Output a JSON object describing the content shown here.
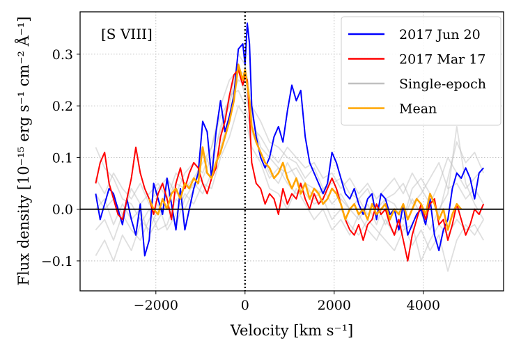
{
  "chart_data": {
    "type": "line",
    "xlabel": "Velocity [km s⁻¹]",
    "ylabel": "Flux density [10⁻¹⁵ erg s⁻¹ cm⁻² Å⁻¹]",
    "annotation": "[S VIII]",
    "xlim": [
      -3700,
      5800
    ],
    "ylim": [
      -0.158,
      0.382
    ],
    "xticks": [
      -2000,
      0,
      2000,
      4000
    ],
    "yticks": [
      -0.1,
      0.0,
      0.1,
      0.2,
      0.3
    ],
    "xtick_labels": [
      "−2000",
      "0",
      "2000",
      "4000"
    ],
    "ytick_labels": [
      "−0.1",
      "0.0",
      "0.1",
      "0.2",
      "0.3"
    ],
    "grid": true,
    "grid_style": "dotted",
    "hline": 0,
    "vline": 0,
    "legend_position": "top-right",
    "legend": [
      {
        "label": "2017 Jun 20",
        "color": "#0000ff"
      },
      {
        "label": "2017 Mar 17",
        "color": "#ff0000"
      },
      {
        "label": "Single-epoch",
        "color": "#c0c0c0"
      },
      {
        "label": "Mean",
        "color": "#ffa500"
      }
    ],
    "series": [
      {
        "key": "jun20",
        "name": "2017 Jun 20",
        "color": "#0000ff",
        "x": [
          -3350,
          -3250,
          -3150,
          -3050,
          -2950,
          -2850,
          -2750,
          -2650,
          -2550,
          -2450,
          -2350,
          -2250,
          -2150,
          -2050,
          -1950,
          -1850,
          -1750,
          -1650,
          -1550,
          -1450,
          -1350,
          -1250,
          -1150,
          -1050,
          -950,
          -850,
          -750,
          -650,
          -550,
          -450,
          -350,
          -250,
          -150,
          -50,
          0,
          50,
          100,
          150,
          250,
          350,
          450,
          550,
          650,
          750,
          850,
          950,
          1050,
          1150,
          1250,
          1350,
          1450,
          1550,
          1650,
          1750,
          1850,
          1950,
          2050,
          2150,
          2250,
          2350,
          2450,
          2550,
          2650,
          2750,
          2850,
          2950,
          3050,
          3150,
          3250,
          3350,
          3450,
          3550,
          3650,
          3750,
          3850,
          3950,
          4050,
          4150,
          4250,
          4350,
          4450,
          4550,
          4650,
          4750,
          4850,
          4950,
          5050,
          5150,
          5250,
          5350
        ],
        "y": [
          0.03,
          -0.02,
          0.01,
          0.04,
          0.03,
          0.0,
          -0.03,
          0.02,
          -0.02,
          -0.05,
          0.01,
          -0.09,
          -0.06,
          0.05,
          0.02,
          -0.01,
          0.06,
          0.01,
          -0.04,
          0.04,
          -0.04,
          0.0,
          0.04,
          0.07,
          0.17,
          0.15,
          0.06,
          0.15,
          0.21,
          0.15,
          0.18,
          0.22,
          0.31,
          0.32,
          0.28,
          0.36,
          0.32,
          0.2,
          0.14,
          0.1,
          0.08,
          0.1,
          0.14,
          0.16,
          0.13,
          0.19,
          0.24,
          0.21,
          0.23,
          0.14,
          0.09,
          0.07,
          0.05,
          0.03,
          0.05,
          0.11,
          0.09,
          0.06,
          0.03,
          0.02,
          0.04,
          0.01,
          -0.01,
          0.02,
          0.03,
          -0.02,
          0.03,
          0.02,
          -0.01,
          0.0,
          -0.04,
          0.01,
          -0.05,
          -0.03,
          -0.01,
          0.0,
          -0.03,
          0.02,
          -0.05,
          -0.08,
          -0.04,
          -0.02,
          0.04,
          0.07,
          0.06,
          0.08,
          0.06,
          0.02,
          0.07,
          0.08
        ]
      },
      {
        "key": "mar17",
        "name": "2017 Mar 17",
        "color": "#ff0000",
        "x": [
          -3350,
          -3250,
          -3150,
          -3050,
          -2950,
          -2850,
          -2750,
          -2650,
          -2550,
          -2450,
          -2350,
          -2250,
          -2150,
          -2050,
          -1950,
          -1850,
          -1750,
          -1650,
          -1550,
          -1450,
          -1350,
          -1250,
          -1150,
          -1050,
          -950,
          -850,
          -750,
          -650,
          -550,
          -450,
          -350,
          -250,
          -150,
          -50,
          0,
          50,
          100,
          150,
          250,
          350,
          450,
          550,
          650,
          750,
          850,
          950,
          1050,
          1150,
          1250,
          1350,
          1450,
          1550,
          1650,
          1750,
          1850,
          1950,
          2050,
          2150,
          2250,
          2350,
          2450,
          2550,
          2650,
          2750,
          2850,
          2950,
          3050,
          3150,
          3250,
          3350,
          3450,
          3550,
          3650,
          3750,
          3850,
          3950,
          4050,
          4150,
          4250,
          4350,
          4450,
          4550,
          4650,
          4750,
          4850,
          4950,
          5050,
          5150,
          5250,
          5350
        ],
        "y": [
          0.05,
          0.09,
          0.11,
          0.05,
          0.02,
          -0.01,
          -0.02,
          0.02,
          0.06,
          0.12,
          0.07,
          0.04,
          0.02,
          -0.01,
          0.03,
          0.05,
          0.02,
          -0.02,
          0.05,
          0.08,
          0.04,
          0.07,
          0.09,
          0.08,
          0.05,
          0.03,
          0.06,
          0.08,
          0.14,
          0.17,
          0.22,
          0.26,
          0.27,
          0.24,
          0.26,
          0.25,
          0.18,
          0.09,
          0.05,
          0.04,
          0.01,
          0.03,
          0.02,
          -0.01,
          0.04,
          0.01,
          0.03,
          0.02,
          0.05,
          0.02,
          0.0,
          0.03,
          0.01,
          0.02,
          0.04,
          0.06,
          0.04,
          0.01,
          -0.02,
          -0.04,
          -0.05,
          -0.03,
          -0.06,
          -0.03,
          -0.02,
          0.01,
          -0.01,
          0.0,
          -0.03,
          -0.05,
          -0.02,
          -0.06,
          -0.1,
          -0.05,
          -0.02,
          0.01,
          -0.02,
          0.01,
          0.02,
          -0.03,
          -0.02,
          -0.06,
          -0.03,
          0.01,
          -0.02,
          -0.05,
          -0.03,
          0.0,
          -0.01,
          0.01
        ]
      },
      {
        "key": "single1",
        "name": "Single-epoch",
        "color": "#c0c0c0",
        "x": [
          -3350,
          -3150,
          -2950,
          -2750,
          -2550,
          -2350,
          -2150,
          -1950,
          -1750,
          -1550,
          -1350,
          -1150,
          -950,
          -750,
          -550,
          -350,
          -150,
          0,
          150,
          350,
          550,
          750,
          950,
          1150,
          1350,
          1550,
          1750,
          1950,
          2150,
          2350,
          2550,
          2750,
          2950,
          3150,
          3350,
          3550,
          3750,
          3950,
          4150,
          4350,
          4550,
          4750,
          4950,
          5150,
          5350
        ],
        "y": [
          0.12,
          0.08,
          0.06,
          0.02,
          0.01,
          -0.02,
          -0.04,
          0.0,
          0.02,
          0.05,
          0.04,
          0.06,
          0.09,
          0.12,
          0.2,
          0.25,
          0.27,
          0.22,
          0.18,
          0.12,
          0.1,
          0.08,
          0.07,
          0.08,
          0.05,
          0.04,
          0.03,
          0.06,
          0.02,
          0.0,
          -0.02,
          0.01,
          -0.03,
          0.02,
          0.01,
          -0.02,
          0.04,
          0.06,
          0.03,
          -0.01,
          0.06,
          0.13,
          0.09,
          0.11,
          0.07
        ]
      },
      {
        "key": "single2",
        "name": "Single-epoch",
        "color": "#c0c0c0",
        "x": [
          -3350,
          -3150,
          -2950,
          -2750,
          -2550,
          -2350,
          -2150,
          -1950,
          -1750,
          -1550,
          -1350,
          -1150,
          -950,
          -750,
          -550,
          -350,
          -150,
          0,
          150,
          350,
          550,
          750,
          950,
          1150,
          1350,
          1550,
          1750,
          1950,
          2150,
          2350,
          2550,
          2750,
          2950,
          3150,
          3350,
          3550,
          3750,
          3950,
          4150,
          4350,
          4550,
          4750,
          4950,
          5150,
          5350
        ],
        "y": [
          -0.09,
          -0.06,
          -0.1,
          -0.05,
          -0.08,
          -0.03,
          0.0,
          -0.04,
          -0.03,
          0.02,
          0.0,
          0.04,
          0.06,
          0.1,
          0.15,
          0.22,
          0.23,
          0.2,
          0.15,
          0.11,
          0.07,
          0.05,
          0.09,
          0.06,
          0.03,
          0.01,
          0.02,
          -0.02,
          0.0,
          -0.03,
          -0.05,
          -0.02,
          -0.04,
          -0.06,
          -0.08,
          -0.04,
          -0.03,
          -0.1,
          -0.06,
          -0.03,
          -0.05,
          -0.02,
          -0.04,
          -0.03,
          -0.06
        ]
      },
      {
        "key": "single3",
        "name": "Single-epoch",
        "color": "#c0c0c0",
        "x": [
          -3350,
          -3150,
          -2950,
          -2750,
          -2550,
          -2350,
          -2150,
          -1950,
          -1750,
          -1550,
          -1350,
          -1150,
          -950,
          -750,
          -550,
          -350,
          -150,
          0,
          150,
          350,
          550,
          750,
          950,
          1150,
          1350,
          1550,
          1750,
          1950,
          2150,
          2350,
          2550,
          2750,
          2950,
          3150,
          3350,
          3550,
          3750,
          3950,
          4150,
          4350,
          4550,
          4750,
          4950,
          5150,
          5350
        ],
        "y": [
          0.03,
          0.0,
          0.02,
          -0.01,
          0.04,
          0.01,
          0.03,
          0.05,
          0.02,
          0.07,
          0.05,
          0.04,
          0.11,
          0.08,
          0.16,
          0.2,
          0.3,
          0.28,
          0.2,
          0.17,
          0.13,
          0.12,
          0.1,
          0.09,
          0.06,
          0.08,
          0.04,
          0.05,
          0.06,
          0.03,
          0.02,
          0.04,
          0.0,
          0.02,
          0.03,
          0.05,
          0.01,
          0.03,
          0.06,
          0.09,
          0.04,
          0.05,
          0.02,
          0.04,
          0.01
        ]
      },
      {
        "key": "single4",
        "name": "Single-epoch",
        "color": "#c0c0c0",
        "x": [
          -3350,
          -3150,
          -2950,
          -2750,
          -2550,
          -2350,
          -2150,
          -1950,
          -1750,
          -1550,
          -1350,
          -1150,
          -950,
          -750,
          -550,
          -350,
          -150,
          0,
          150,
          350,
          550,
          750,
          950,
          1150,
          1350,
          1550,
          1750,
          1950,
          2150,
          2350,
          2550,
          2750,
          2950,
          3150,
          3350,
          3550,
          3750,
          3950,
          4150,
          4350,
          4550,
          4750,
          4950,
          5150,
          5350
        ],
        "y": [
          -0.04,
          -0.02,
          -0.06,
          -0.01,
          -0.04,
          -0.06,
          -0.02,
          0.01,
          -0.04,
          -0.01,
          0.03,
          0.01,
          0.05,
          0.04,
          0.1,
          0.14,
          0.2,
          0.18,
          0.12,
          0.09,
          0.04,
          0.03,
          0.0,
          0.04,
          0.01,
          -0.02,
          0.0,
          -0.04,
          -0.02,
          -0.05,
          -0.01,
          -0.04,
          -0.06,
          -0.02,
          -0.05,
          -0.03,
          -0.07,
          -0.04,
          -0.08,
          -0.05,
          -0.12,
          -0.06,
          -0.03,
          -0.05,
          -0.02
        ]
      },
      {
        "key": "single5",
        "name": "Single-epoch",
        "color": "#c0c0c0",
        "x": [
          -3350,
          -3150,
          -2950,
          -2750,
          -2550,
          -2350,
          -2150,
          -1950,
          -1750,
          -1550,
          -1350,
          -1150,
          -950,
          -750,
          -550,
          -350,
          -150,
          0,
          150,
          350,
          550,
          750,
          950,
          1150,
          1350,
          1550,
          1750,
          1950,
          2150,
          2350,
          2550,
          2750,
          2950,
          3150,
          3350,
          3550,
          3750,
          3950,
          4150,
          4350,
          4550,
          4750,
          4950,
          5150,
          5350
        ],
        "y": [
          0.06,
          0.03,
          0.07,
          0.04,
          0.02,
          0.05,
          0.01,
          0.04,
          0.06,
          0.03,
          0.07,
          0.09,
          0.07,
          0.12,
          0.18,
          0.21,
          0.25,
          0.24,
          0.16,
          0.14,
          0.11,
          0.09,
          0.12,
          0.1,
          0.08,
          0.09,
          0.06,
          0.07,
          0.04,
          0.06,
          0.03,
          0.05,
          0.02,
          0.04,
          0.06,
          0.03,
          0.07,
          0.04,
          0.01,
          0.05,
          0.1,
          0.07,
          0.04,
          0.06,
          0.08
        ]
      },
      {
        "key": "single6",
        "name": "Single-epoch",
        "color": "#c0c0c0",
        "x": [
          -3350,
          -3150,
          -2950,
          -2750,
          -2550,
          -2350,
          -2150,
          -1950,
          -1750,
          -1550,
          -1350,
          -1150,
          -950,
          -750,
          -550,
          -350,
          -150,
          0,
          150,
          350,
          550,
          750,
          950,
          1150,
          1350,
          1550,
          1750,
          1950,
          2150,
          2350,
          2550,
          2750,
          2950,
          3150,
          3350,
          3550,
          3750,
          3950,
          4150,
          4350,
          4550,
          4750,
          4950,
          5150,
          5350
        ],
        "y": [
          0.0,
          0.02,
          -0.03,
          0.01,
          -0.02,
          0.0,
          -0.05,
          -0.02,
          0.01,
          -0.03,
          0.02,
          0.05,
          0.03,
          0.07,
          0.12,
          0.18,
          0.27,
          0.26,
          0.19,
          0.1,
          0.06,
          0.08,
          0.05,
          0.03,
          0.05,
          0.02,
          0.04,
          0.01,
          0.03,
          0.0,
          0.02,
          -0.01,
          0.01,
          -0.03,
          0.0,
          -0.02,
          0.02,
          -0.01,
          -0.04,
          0.0,
          0.03,
          0.16,
          0.05,
          0.01,
          -0.02
        ]
      },
      {
        "key": "mean",
        "name": "Mean",
        "color": "#ffa500",
        "x": [
          -2150,
          -2050,
          -1950,
          -1850,
          -1750,
          -1650,
          -1550,
          -1450,
          -1350,
          -1250,
          -1150,
          -1050,
          -950,
          -850,
          -750,
          -650,
          -550,
          -450,
          -350,
          -250,
          -150,
          -50,
          0,
          50,
          100,
          150,
          250,
          350,
          450,
          550,
          650,
          750,
          850,
          950,
          1050,
          1150,
          1250,
          1350,
          1450,
          1550,
          1650,
          1750,
          1850,
          1950,
          2050,
          2150,
          2250,
          2350,
          2450,
          2550,
          2650,
          2750,
          2850,
          2950,
          3050,
          3150,
          3250,
          3350,
          3450,
          3550,
          3650,
          3750,
          3850,
          3950,
          4050,
          4150,
          4250,
          4350,
          4450,
          4550,
          4650,
          4750,
          4850
        ],
        "y": [
          0.02,
          0.0,
          -0.01,
          0.02,
          0.0,
          0.03,
          0.04,
          0.02,
          0.05,
          0.04,
          0.06,
          0.05,
          0.12,
          0.07,
          0.06,
          0.09,
          0.11,
          0.14,
          0.17,
          0.21,
          0.28,
          0.25,
          0.27,
          0.24,
          0.21,
          0.16,
          0.13,
          0.11,
          0.09,
          0.08,
          0.06,
          0.07,
          0.09,
          0.06,
          0.04,
          0.06,
          0.03,
          0.05,
          0.02,
          0.04,
          0.03,
          0.01,
          0.02,
          0.04,
          0.03,
          0.01,
          -0.02,
          0.0,
          0.01,
          -0.01,
          0.0,
          -0.02,
          0.01,
          -0.01,
          0.0,
          0.01,
          -0.02,
          0.0,
          -0.01,
          0.01,
          -0.02,
          0.0,
          0.02,
          0.01,
          -0.01,
          0.03,
          0.01,
          -0.02,
          0.0,
          -0.04,
          -0.01,
          0.01,
          0.0
        ]
      }
    ]
  }
}
